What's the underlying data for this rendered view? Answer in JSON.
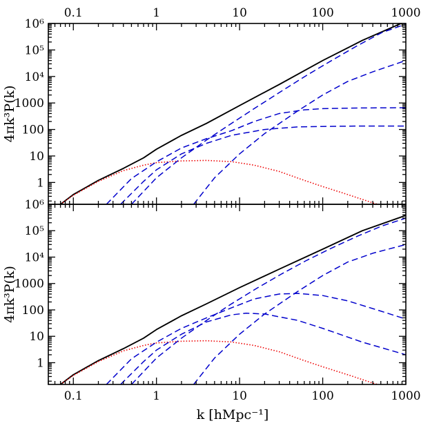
{
  "chart_data": [
    {
      "type": "line",
      "panel": "top",
      "xscale": "log",
      "yscale": "log",
      "xlim": [
        0.05,
        1000
      ],
      "ylim": [
        0.15,
        1000000
      ],
      "xlabel": "",
      "ylabel": "4πk³P(k)",
      "x_ticklabels": [
        "0.1",
        "1",
        "10",
        "100",
        "1000"
      ],
      "y_ticklabels": [
        "1",
        "10",
        "100",
        "1000",
        "10⁴",
        "10⁵",
        "10⁶"
      ],
      "x_ticklabels_position": "top",
      "colors": {
        "total": "#000000",
        "terms": "#0000cc",
        "linear": "#ee0000"
      },
      "series": [
        {
          "style": "solid",
          "color": "total",
          "x": [
            0.07,
            0.1,
            0.2,
            0.4,
            0.7,
            1,
            2,
            4,
            10,
            30,
            100,
            300,
            1000
          ],
          "y": [
            0.15,
            0.35,
            1.2,
            3.4,
            8.5,
            18,
            60,
            170,
            800,
            5000,
            40000,
            230000,
            1200000
          ]
        },
        {
          "style": "dotted",
          "color": "linear",
          "x": [
            0.07,
            0.1,
            0.2,
            0.4,
            0.7,
            1,
            2,
            4,
            8,
            15,
            30,
            60,
            100,
            200,
            400,
            800
          ],
          "y": [
            0.15,
            0.33,
            1.1,
            2.8,
            4.5,
            5.6,
            6.5,
            6.8,
            6.1,
            4.5,
            2.6,
            1.2,
            0.7,
            0.35,
            0.17,
            0.09
          ]
        },
        {
          "style": "dashed",
          "color": "terms",
          "x": [
            0.25,
            0.5,
            1,
            2,
            4,
            8,
            15,
            30,
            60,
            100,
            300,
            1000
          ],
          "y": [
            0.15,
            1.4,
            6,
            20,
            45,
            90,
            200,
            400,
            550,
            610,
            650,
            660
          ]
        },
        {
          "style": "dashed",
          "color": "terms",
          "x": [
            0.37,
            0.7,
            1,
            2,
            4,
            8,
            20,
            50,
            100,
            300,
            1000
          ],
          "y": [
            0.15,
            1.1,
            3,
            12,
            30,
            60,
            100,
            125,
            130,
            135,
            135
          ]
        },
        {
          "style": "dashed",
          "color": "terms",
          "x": [
            0.5,
            1,
            2,
            4,
            8,
            16,
            32,
            64,
            128,
            256,
            512,
            1000
          ],
          "y": [
            0.15,
            1.5,
            8.5,
            40,
            170,
            700,
            2800,
            11000,
            40000,
            140000,
            450000,
            950000
          ]
        },
        {
          "style": "dashed",
          "color": "terms",
          "x": [
            2.8,
            5,
            10,
            20,
            50,
            100,
            200,
            400,
            1000
          ],
          "y": [
            0.15,
            1.5,
            12,
            70,
            500,
            2000,
            6500,
            15000,
            40000
          ]
        }
      ]
    },
    {
      "type": "line",
      "panel": "bottom",
      "xscale": "log",
      "yscale": "log",
      "xlim": [
        0.05,
        1000
      ],
      "ylim": [
        0.15,
        1000000
      ],
      "xlabel": "k [hMpc⁻¹]",
      "ylabel": "4πk³P(k)",
      "x_ticklabels": [
        "0.1",
        "1",
        "10",
        "100",
        "1000"
      ],
      "y_ticklabels": [
        "1",
        "10",
        "100",
        "1000",
        "10⁴",
        "10⁵",
        "10⁶"
      ],
      "x_ticklabels_position": "bottom",
      "colors": {
        "total": "#000000",
        "terms": "#0000cc",
        "linear": "#ee0000"
      },
      "series": [
        {
          "style": "solid",
          "color": "total",
          "x": [
            0.07,
            0.1,
            0.2,
            0.4,
            0.7,
            1,
            2,
            4,
            10,
            30,
            100,
            300,
            1000
          ],
          "y": [
            0.15,
            0.35,
            1.2,
            3.4,
            8.5,
            18,
            60,
            170,
            700,
            3500,
            20000,
            100000,
            380000
          ]
        },
        {
          "style": "dotted",
          "color": "linear",
          "x": [
            0.07,
            0.1,
            0.2,
            0.4,
            0.7,
            1,
            2,
            4,
            8,
            15,
            30,
            60,
            100,
            200,
            400,
            800
          ],
          "y": [
            0.15,
            0.33,
            1.1,
            2.8,
            4.5,
            5.6,
            6.5,
            6.8,
            6.1,
            4.5,
            2.6,
            1.2,
            0.7,
            0.35,
            0.17,
            0.09
          ]
        },
        {
          "style": "dashed",
          "color": "terms",
          "x": [
            0.25,
            0.5,
            1,
            2,
            4,
            8,
            15,
            30,
            50,
            100,
            200,
            500,
            1000
          ],
          "y": [
            0.15,
            1.4,
            6,
            20,
            50,
            120,
            260,
            400,
            420,
            350,
            220,
            90,
            45
          ]
        },
        {
          "style": "dashed",
          "color": "terms",
          "x": [
            0.37,
            0.7,
            1,
            2,
            4,
            8,
            12,
            20,
            50,
            100,
            300,
            1000
          ],
          "y": [
            0.15,
            1.1,
            3,
            12,
            35,
            65,
            75,
            70,
            40,
            20,
            6,
            2
          ]
        },
        {
          "style": "dashed",
          "color": "terms",
          "x": [
            0.5,
            1,
            2,
            4,
            8,
            16,
            32,
            64,
            128,
            256,
            512,
            1000
          ],
          "y": [
            0.15,
            1.5,
            8.5,
            40,
            170,
            650,
            2300,
            7500,
            22000,
            60000,
            150000,
            300000
          ]
        },
        {
          "style": "dashed",
          "color": "terms",
          "x": [
            2.8,
            5,
            10,
            20,
            50,
            100,
            200,
            400,
            1000
          ],
          "y": [
            0.15,
            1.5,
            12,
            70,
            500,
            2000,
            6500,
            14000,
            30000
          ]
        }
      ]
    }
  ]
}
